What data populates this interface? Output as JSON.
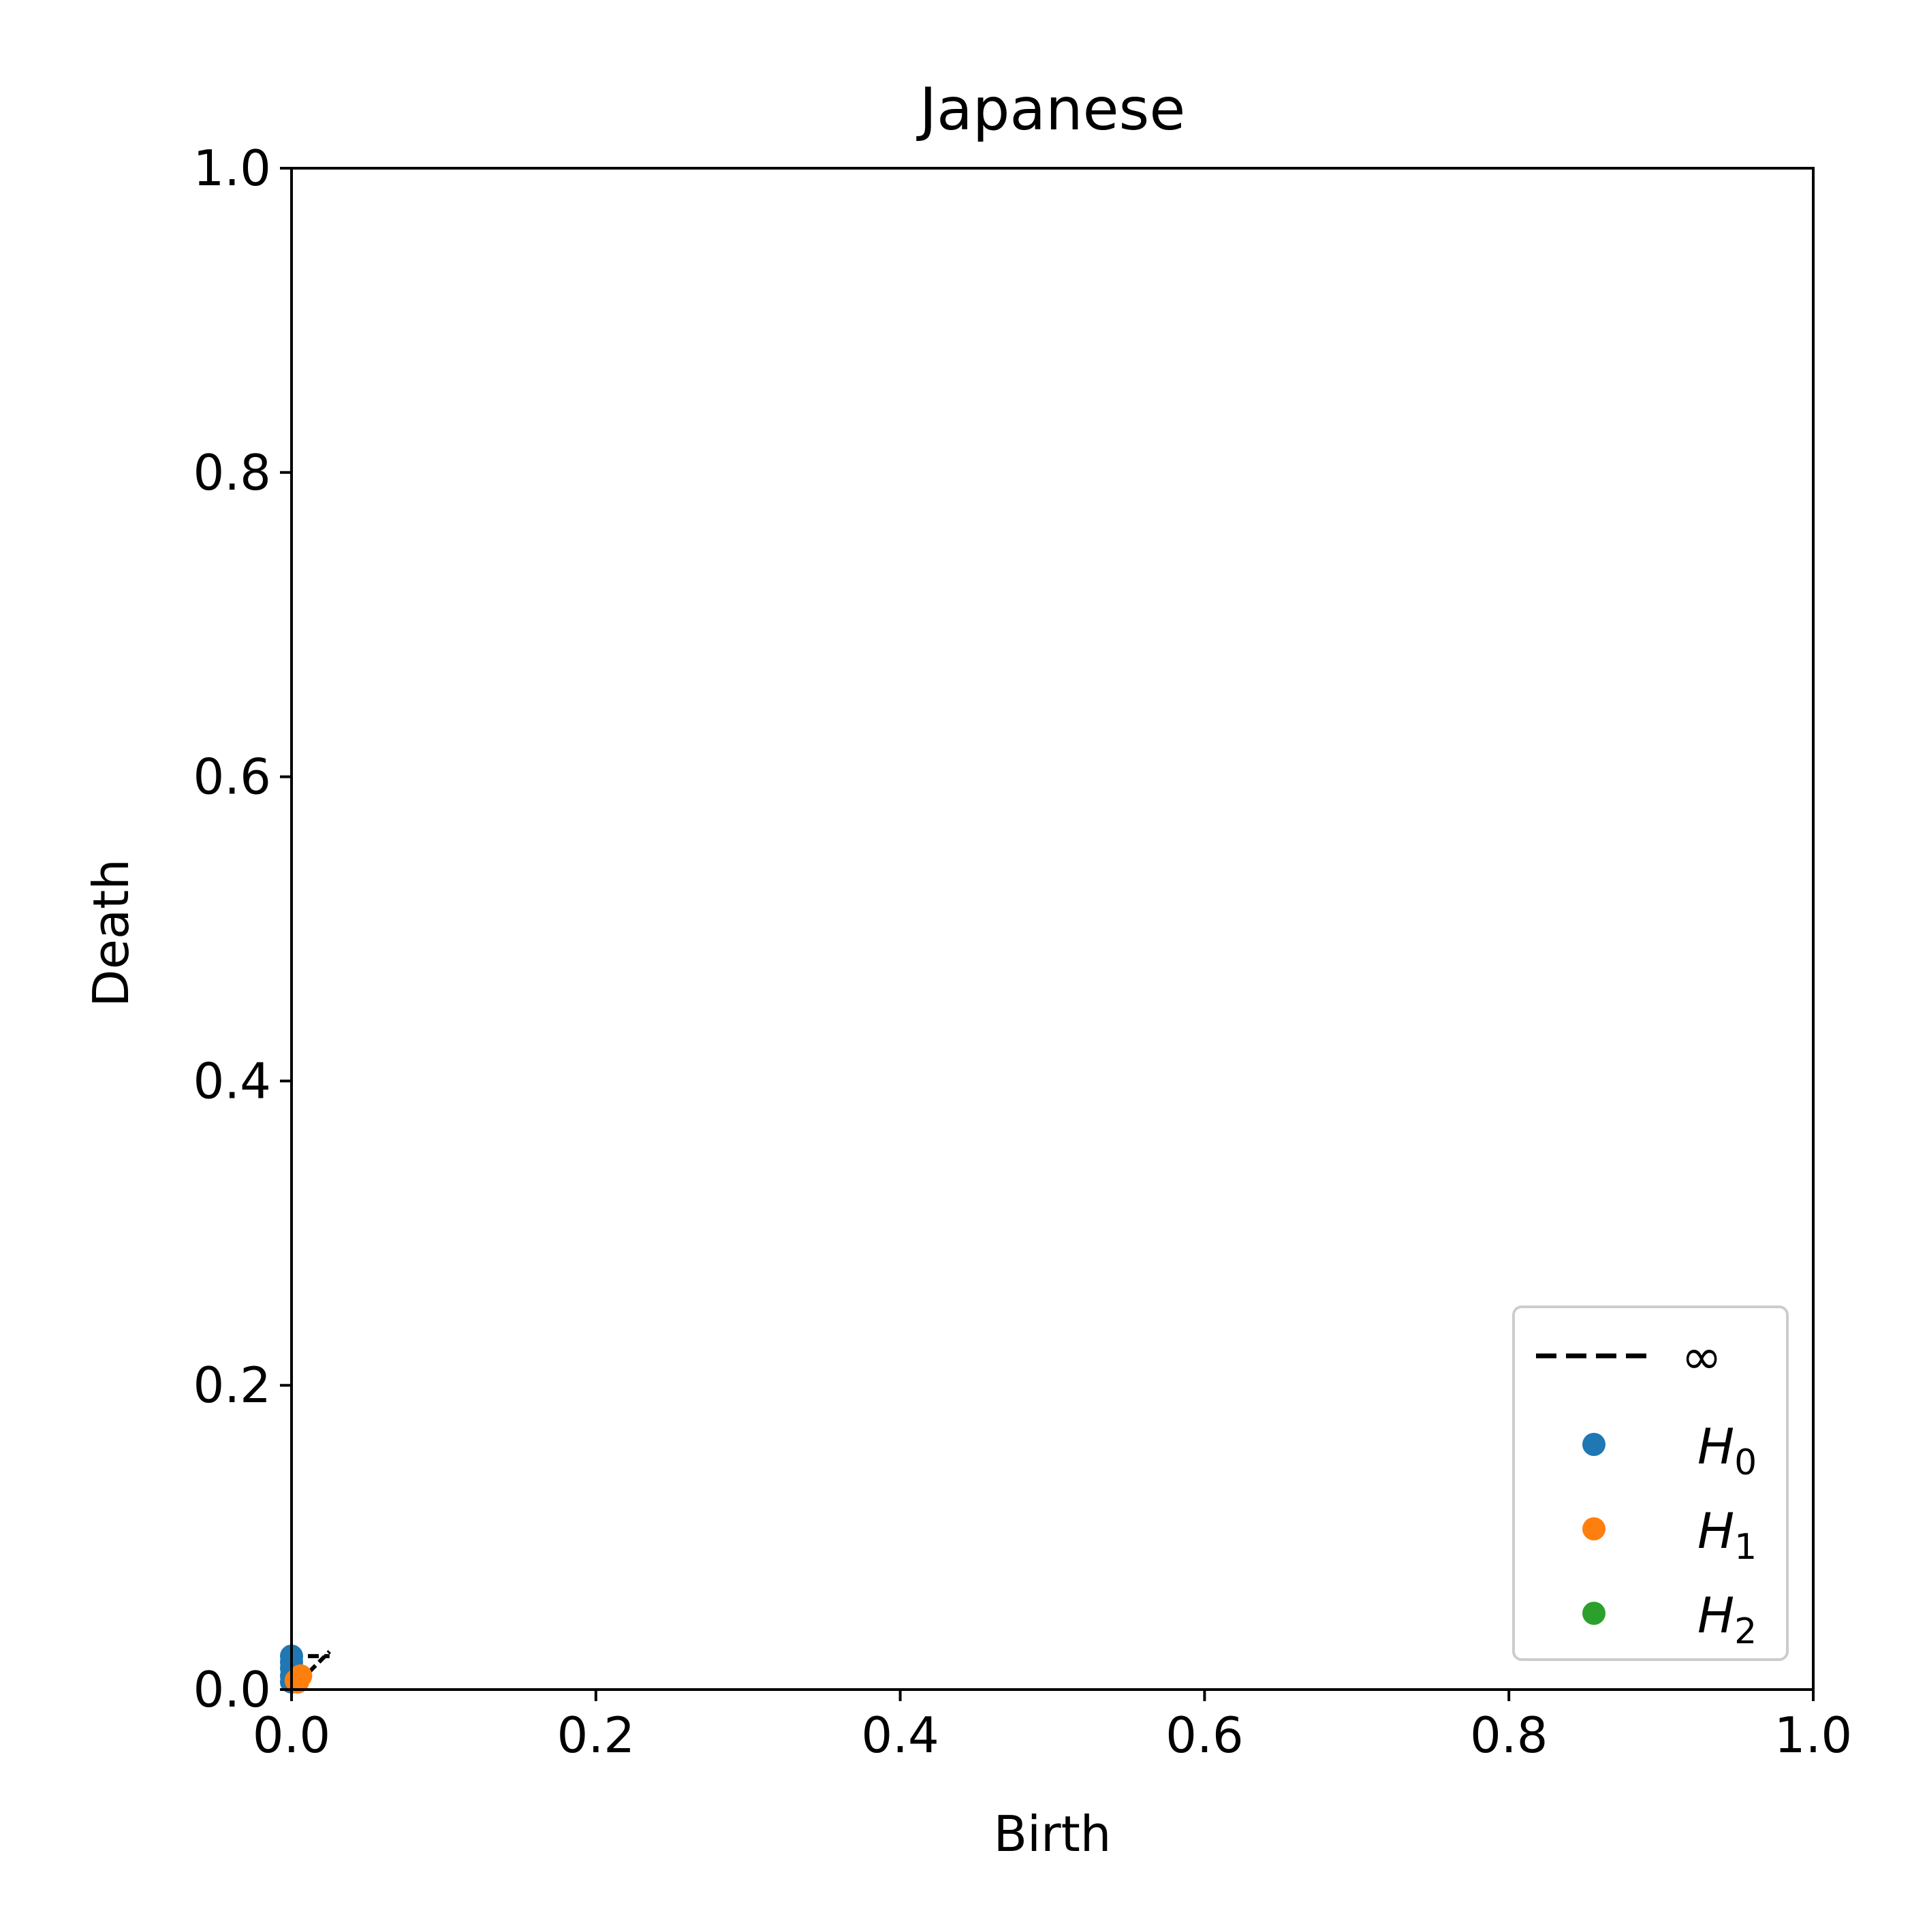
{
  "chart_data": {
    "type": "scatter",
    "title": "Japanese",
    "xlabel": "Birth",
    "ylabel": "Death",
    "xlim": [
      0.0,
      1.0
    ],
    "ylim": [
      0.0,
      1.0
    ],
    "x_ticks": [
      "0.0",
      "0.2",
      "0.4",
      "0.6",
      "0.8",
      "1.0"
    ],
    "y_ticks": [
      "0.0",
      "0.2",
      "0.4",
      "0.6",
      "0.8",
      "1.0"
    ],
    "grid": false,
    "legend_position": "lower-right",
    "infinity_line": {
      "label": "∞",
      "y": 0.022,
      "x_range": [
        0.0,
        0.025
      ],
      "color": "#000000",
      "style": "dashed"
    },
    "diagonal": {
      "from": [
        0.0,
        0.0
      ],
      "to": [
        0.025,
        0.025
      ],
      "color": "#000000",
      "style": "dashed"
    },
    "series": [
      {
        "name": "H",
        "subscript": "0",
        "color": "#1f77b4",
        "points": [
          [
            0.0,
            0.022
          ],
          [
            0.0,
            0.018
          ],
          [
            0.0,
            0.014
          ],
          [
            0.0,
            0.009
          ],
          [
            0.0,
            0.005
          ]
        ]
      },
      {
        "name": "H",
        "subscript": "1",
        "color": "#ff7f0e",
        "points": [
          [
            0.003,
            0.006
          ],
          [
            0.005,
            0.008
          ],
          [
            0.006,
            0.009
          ],
          [
            0.004,
            0.005
          ]
        ]
      },
      {
        "name": "H",
        "subscript": "2",
        "color": "#2ca02c",
        "points": []
      }
    ]
  }
}
